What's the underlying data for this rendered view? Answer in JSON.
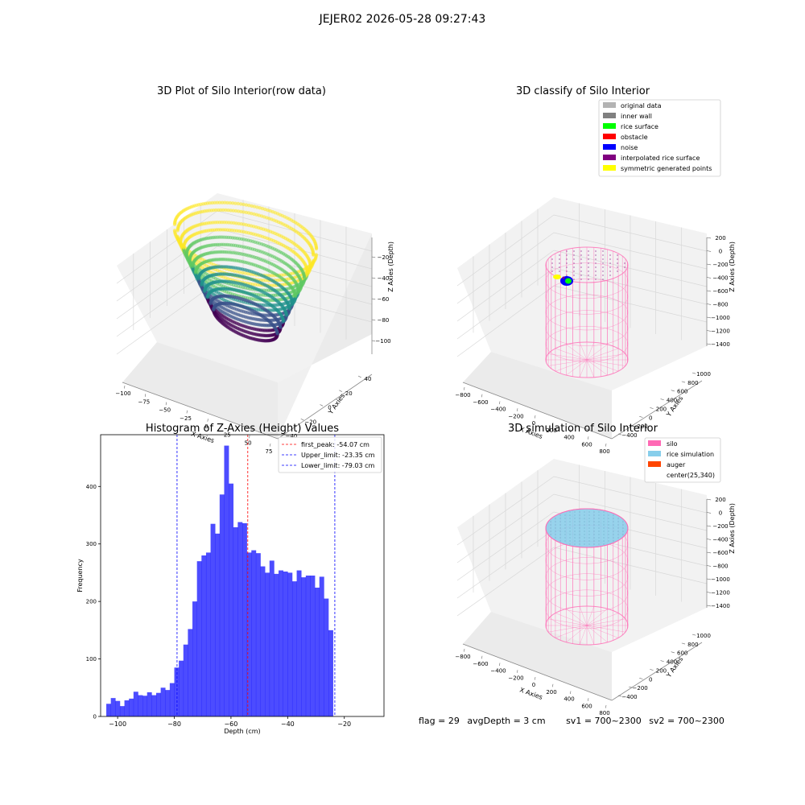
{
  "suptitle": "JEJER02 2026-05-28 09:27:43",
  "footer": {
    "flag": "flag = 29",
    "avg_depth": "avgDepth = 3 cm",
    "sv1": "sv1 = 700~2300",
    "sv2": "sv2 = 700~2300"
  },
  "panels": {
    "raw": {
      "title": "3D Plot of Silo Interior(row data)",
      "x_label": "X Axies",
      "y_label": "Y Axies",
      "z_label": "Z Axies (Depth)",
      "x_ticks": [
        "-100",
        "-75",
        "-50",
        "-25",
        "0",
        "25",
        "50",
        "75"
      ],
      "y_ticks": [
        "-40",
        "-20",
        "0",
        "20",
        "40"
      ],
      "z_ticks": [
        "-20",
        "-40",
        "-60",
        "-80",
        "-100"
      ],
      "colormap": [
        "#440154",
        "#3b528b",
        "#21918c",
        "#5ec962",
        "#fde725"
      ]
    },
    "classify": {
      "title": "3D classify of Silo Interior",
      "x_label": "X Axies",
      "y_label": "Y Axies",
      "z_label": "Z Axies (Depth)",
      "x_ticks": [
        "-800",
        "-600",
        "-400",
        "-200",
        "0",
        "200",
        "400",
        "600",
        "800"
      ],
      "y_ticks": [
        "-400",
        "-200",
        "0",
        "200",
        "400",
        "600",
        "800",
        "1000"
      ],
      "z_ticks": [
        "200",
        "0",
        "-200",
        "-400",
        "-600",
        "-800",
        "-1000",
        "-1200",
        "-1400"
      ],
      "legend": [
        {
          "label": "original data",
          "color": "#b3b3b3"
        },
        {
          "label": "inner wall",
          "color": "#808080"
        },
        {
          "label": "rice surface",
          "color": "#00ff00"
        },
        {
          "label": "obstacle",
          "color": "#ff0000"
        },
        {
          "label": "noise",
          "color": "#0000ff"
        },
        {
          "label": "interpolated rice surface",
          "color": "#800080"
        },
        {
          "label": "symmetric generated points",
          "color": "#ffff00"
        }
      ],
      "silo_color": "#ff69b4"
    },
    "simulation": {
      "title": "3D simulation of Silo Interior",
      "x_label": "X Axies",
      "y_label": "Y Axies",
      "z_label": "Z Axies (Depth)",
      "x_ticks": [
        "-800",
        "-600",
        "-400",
        "-200",
        "0",
        "200",
        "400",
        "600",
        "800"
      ],
      "y_ticks": [
        "-400",
        "-200",
        "0",
        "200",
        "400",
        "600",
        "800",
        "1000"
      ],
      "z_ticks": [
        "200",
        "0",
        "-200",
        "-400",
        "-600",
        "-800",
        "-1000",
        "-1200",
        "-1400"
      ],
      "legend": [
        {
          "label": "silo",
          "color": "#ff69b4"
        },
        {
          "label": "rice simulation",
          "color": "#87ceeb"
        },
        {
          "label": "auger",
          "color": "#ff4500"
        },
        {
          "label": "center(25,340)",
          "color": "#ffffff"
        }
      ]
    }
  },
  "chart_data": {
    "type": "bar",
    "title": "Histogram of Z-Axies (Height) Values",
    "xlabel": "Depth (cm)",
    "ylabel": "Frequency",
    "xlim": [
      -106,
      -6
    ],
    "ylim": [
      0,
      490
    ],
    "x_ticks": [
      -100,
      -80,
      -60,
      -40,
      -20
    ],
    "y_ticks": [
      0,
      100,
      200,
      300,
      400
    ],
    "bar_color": "#0000ff",
    "bin_start": -104,
    "bin_width": 1.6,
    "values": [
      22,
      32,
      27,
      18,
      28,
      31,
      43,
      37,
      36,
      42,
      37,
      41,
      50,
      46,
      58,
      85,
      97,
      125,
      152,
      200,
      270,
      280,
      285,
      335,
      318,
      386,
      471,
      405,
      329,
      338,
      336,
      285,
      289,
      284,
      261,
      250,
      271,
      248,
      254,
      252,
      250,
      235,
      254,
      242,
      245,
      245,
      224,
      243,
      205,
      150
    ],
    "lines": [
      {
        "label": "first_peak: -54.07 cm",
        "value": -54.07,
        "color": "#ff0000"
      },
      {
        "label": "Upper_limit: -23.35 cm",
        "value": -23.35,
        "color": "#0000ff"
      },
      {
        "label": "Lower_limit: -79.03 cm",
        "value": -79.03,
        "color": "#0000ff"
      }
    ],
    "legend_position": "top-right"
  }
}
